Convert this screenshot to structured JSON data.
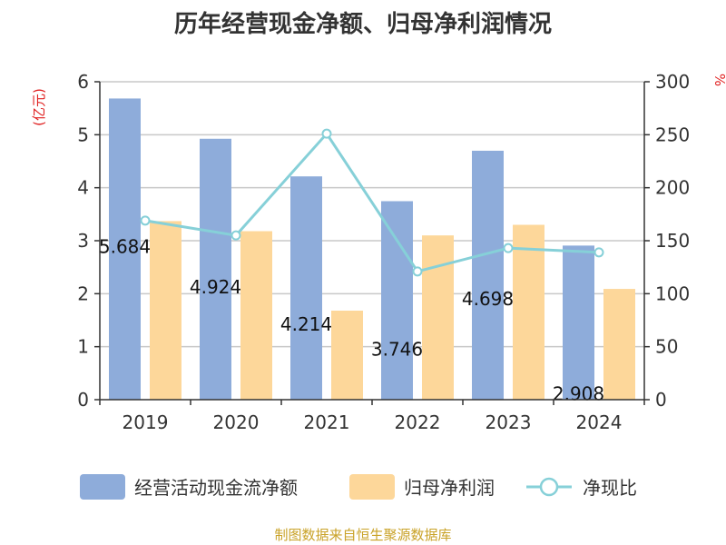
{
  "title": "历年经营现金净额、归母净利润情况",
  "source": "制图数据来自恒生聚源数据库",
  "chart_data": {
    "type": "bar",
    "title": "历年经营现金净额、归母净利润情况",
    "categories": [
      "2019",
      "2020",
      "2021",
      "2022",
      "2023",
      "2024"
    ],
    "series": [
      {
        "name": "经营活动现金流净额",
        "kind": "bar",
        "axis": "left",
        "values": [
          5.684,
          4.924,
          4.214,
          3.746,
          4.698,
          2.908
        ],
        "labels": [
          "5.684",
          "4.924",
          "4.214",
          "3.746",
          "4.698",
          "2.908"
        ],
        "color": "#8eacda"
      },
      {
        "name": "归母净利润",
        "kind": "bar",
        "axis": "left",
        "values": [
          3.37,
          3.18,
          1.68,
          3.1,
          3.3,
          2.09
        ],
        "color": "#fdd79a"
      },
      {
        "name": "净现比",
        "kind": "line",
        "axis": "right",
        "values": [
          169,
          155,
          251,
          121,
          143,
          139
        ],
        "color": "#86d0d8"
      }
    ],
    "y_left": {
      "unit": "(亿元)",
      "min": 0,
      "max": 6,
      "ticks": [
        "0",
        "1",
        "2",
        "3",
        "4",
        "5",
        "6"
      ]
    },
    "y_right": {
      "unit": "%",
      "min": 0,
      "max": 300,
      "ticks": [
        "0",
        "50",
        "100",
        "150",
        "200",
        "250",
        "300"
      ]
    },
    "grid": true,
    "legend_position": "bottom"
  }
}
